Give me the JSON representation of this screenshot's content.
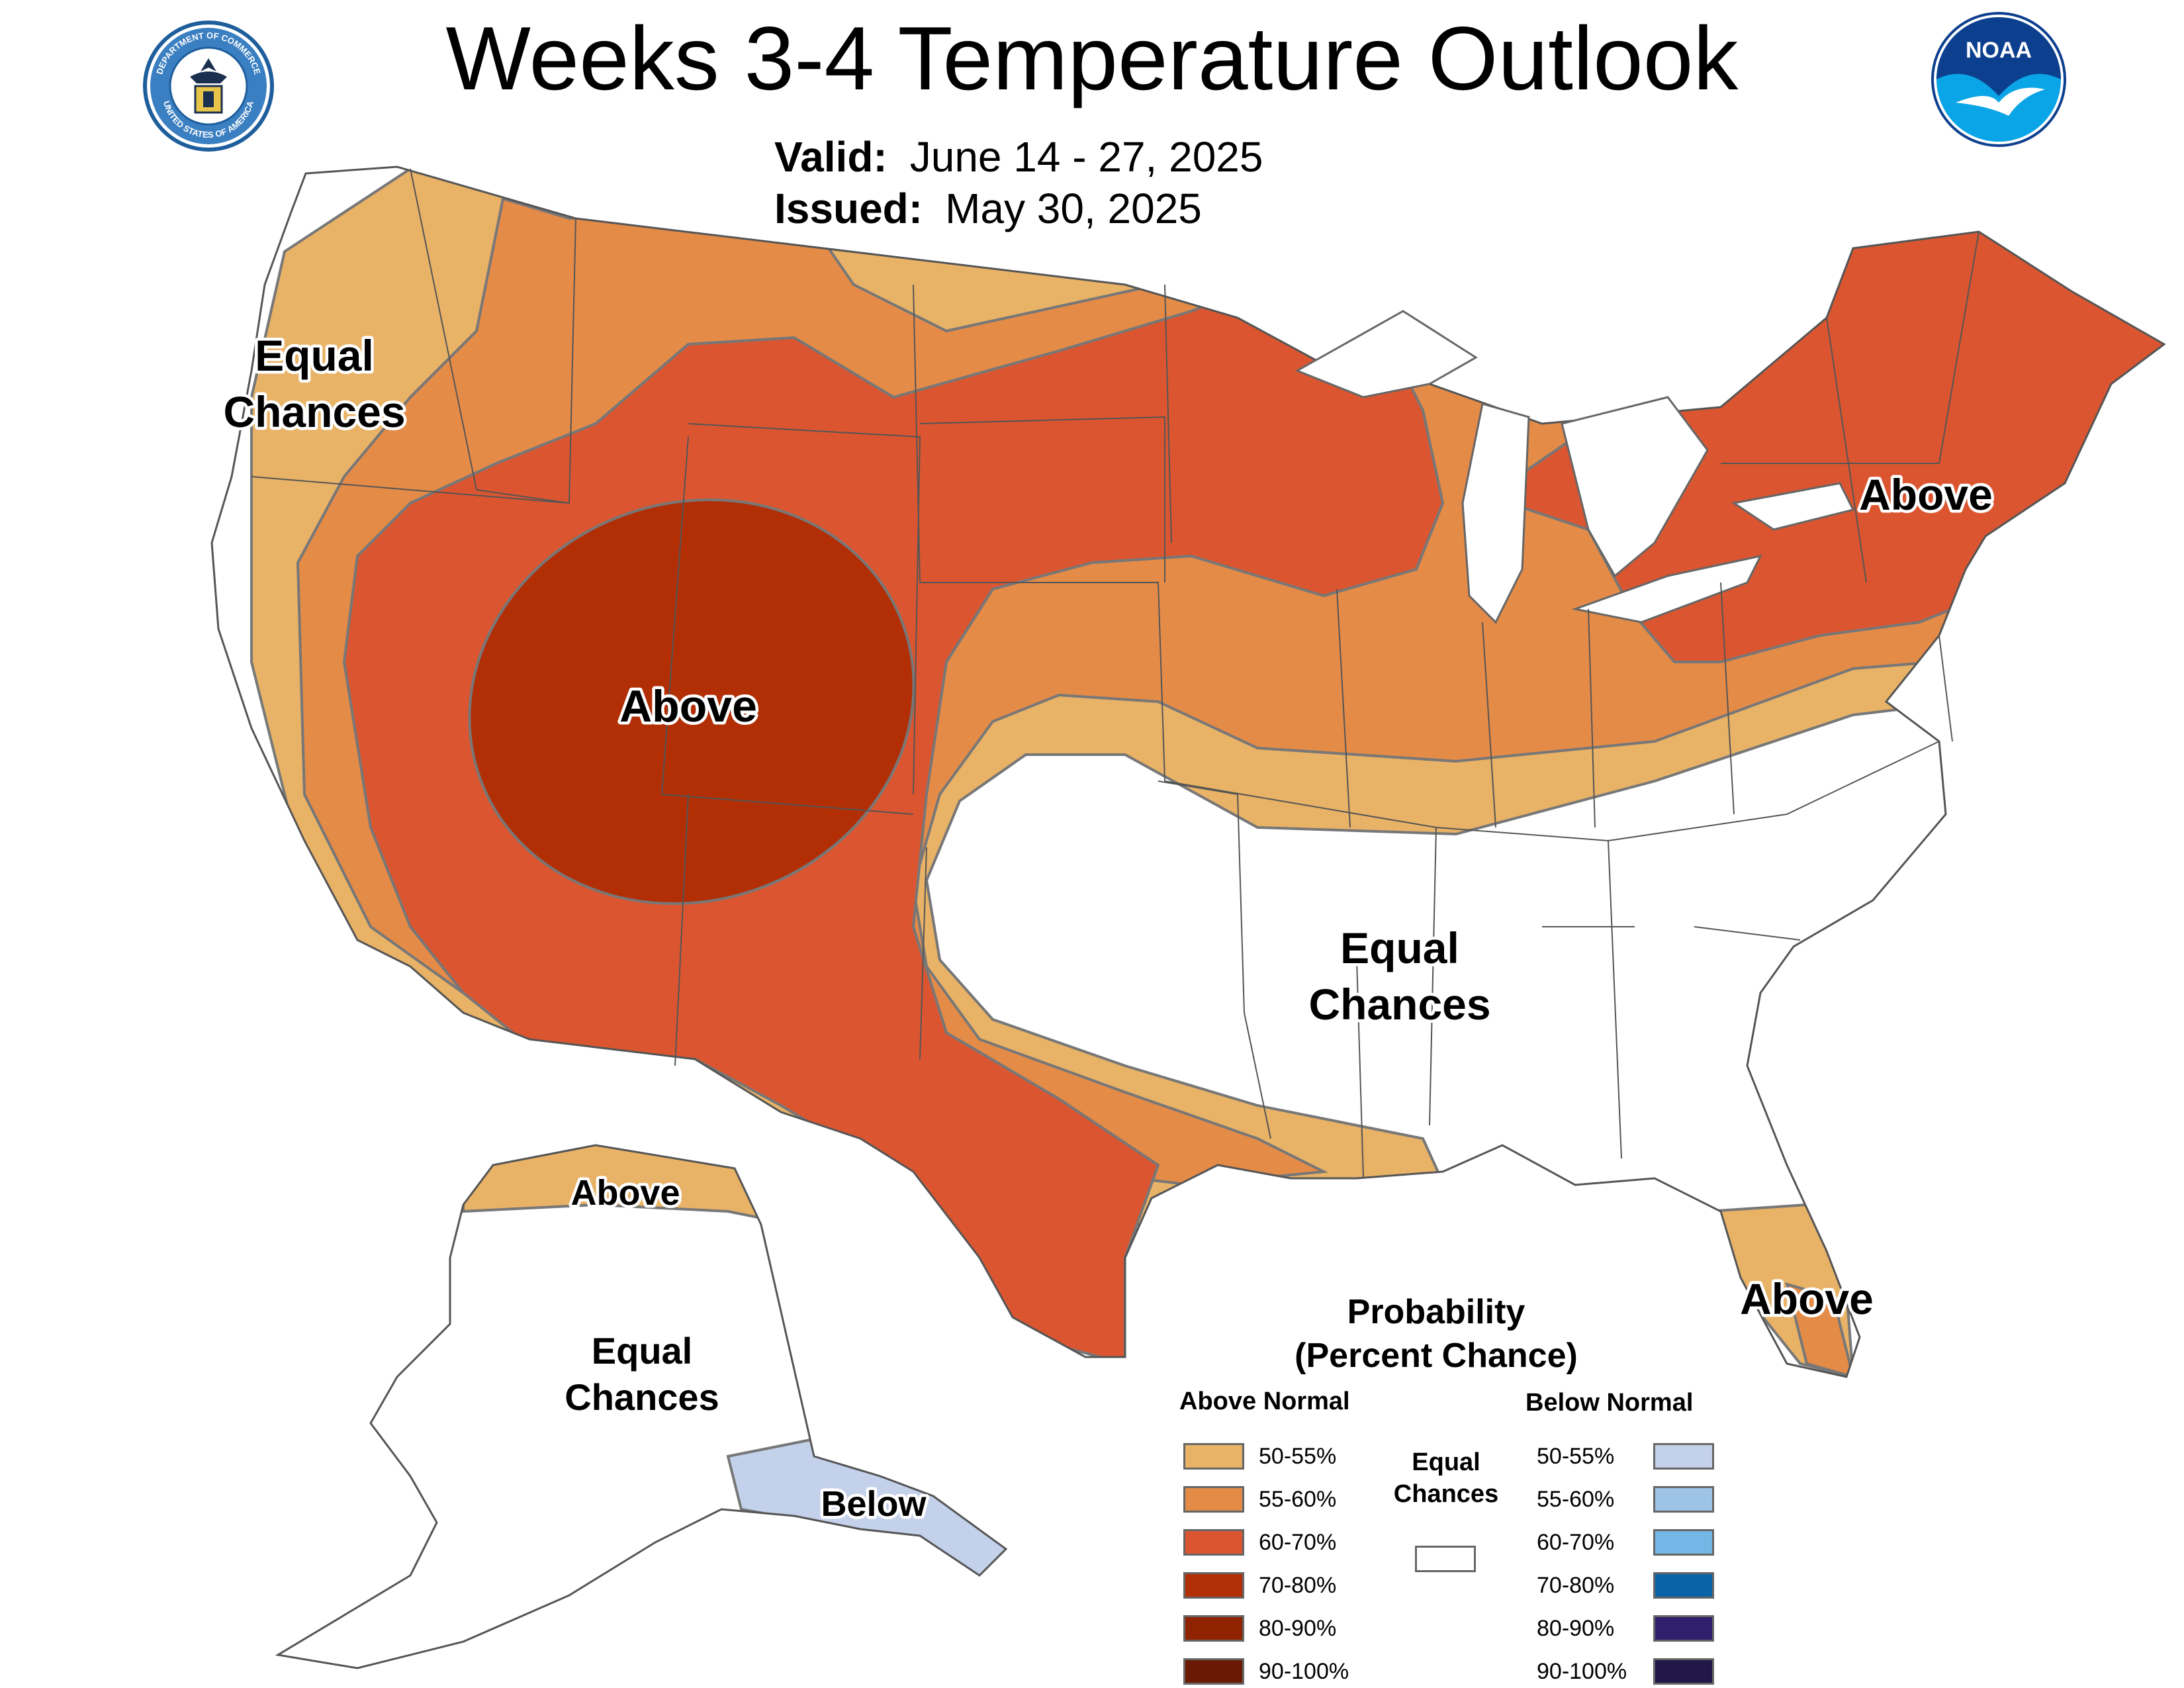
{
  "header": {
    "title": "Weeks 3-4 Temperature Outlook",
    "valid_label": "Valid:",
    "valid_value": "June 14 - 27, 2025",
    "issued_label": "Issued:",
    "issued_value": "May 30, 2025",
    "doc_seal_top_text": "DEPARTMENT OF COMMERCE",
    "doc_seal_bottom_text": "UNITED STATES OF AMERICA",
    "noaa_logo_text": "NOAA"
  },
  "map_labels": {
    "west_equal_1": "Equal",
    "west_equal_2": "Chances",
    "west_above": "Above",
    "south_equal_1": "Equal",
    "south_equal_2": "Chances",
    "northeast_above": "Above",
    "florida_above": "Above",
    "alaska_north_above": "Above",
    "alaska_equal_1": "Equal",
    "alaska_equal_2": "Chances",
    "alaska_below": "Below"
  },
  "legend": {
    "title_line1": "Probability",
    "title_line2": "(Percent Chance)",
    "above_heading": "Above Normal",
    "below_heading": "Below Normal",
    "equal_line1": "Equal",
    "equal_line2": "Chances",
    "above": [
      {
        "label": "50-55%",
        "color": "#e8b267"
      },
      {
        "label": "55-60%",
        "color": "#e48b48"
      },
      {
        "label": "60-70%",
        "color": "#db5630"
      },
      {
        "label": "70-80%",
        "color": "#b22e05"
      },
      {
        "label": "80-90%",
        "color": "#8f2200"
      },
      {
        "label": "90-100%",
        "color": "#6a1a03"
      }
    ],
    "below": [
      {
        "label": "50-55%",
        "color": "#c4d1eb"
      },
      {
        "label": "55-60%",
        "color": "#9dc4e6"
      },
      {
        "label": "60-70%",
        "color": "#74b6e5"
      },
      {
        "label": "70-80%",
        "color": "#0a63a6"
      },
      {
        "label": "80-90%",
        "color": "#2f1f6d"
      },
      {
        "label": "90-100%",
        "color": "#211848"
      }
    ],
    "equal_color": "#ffffff"
  }
}
